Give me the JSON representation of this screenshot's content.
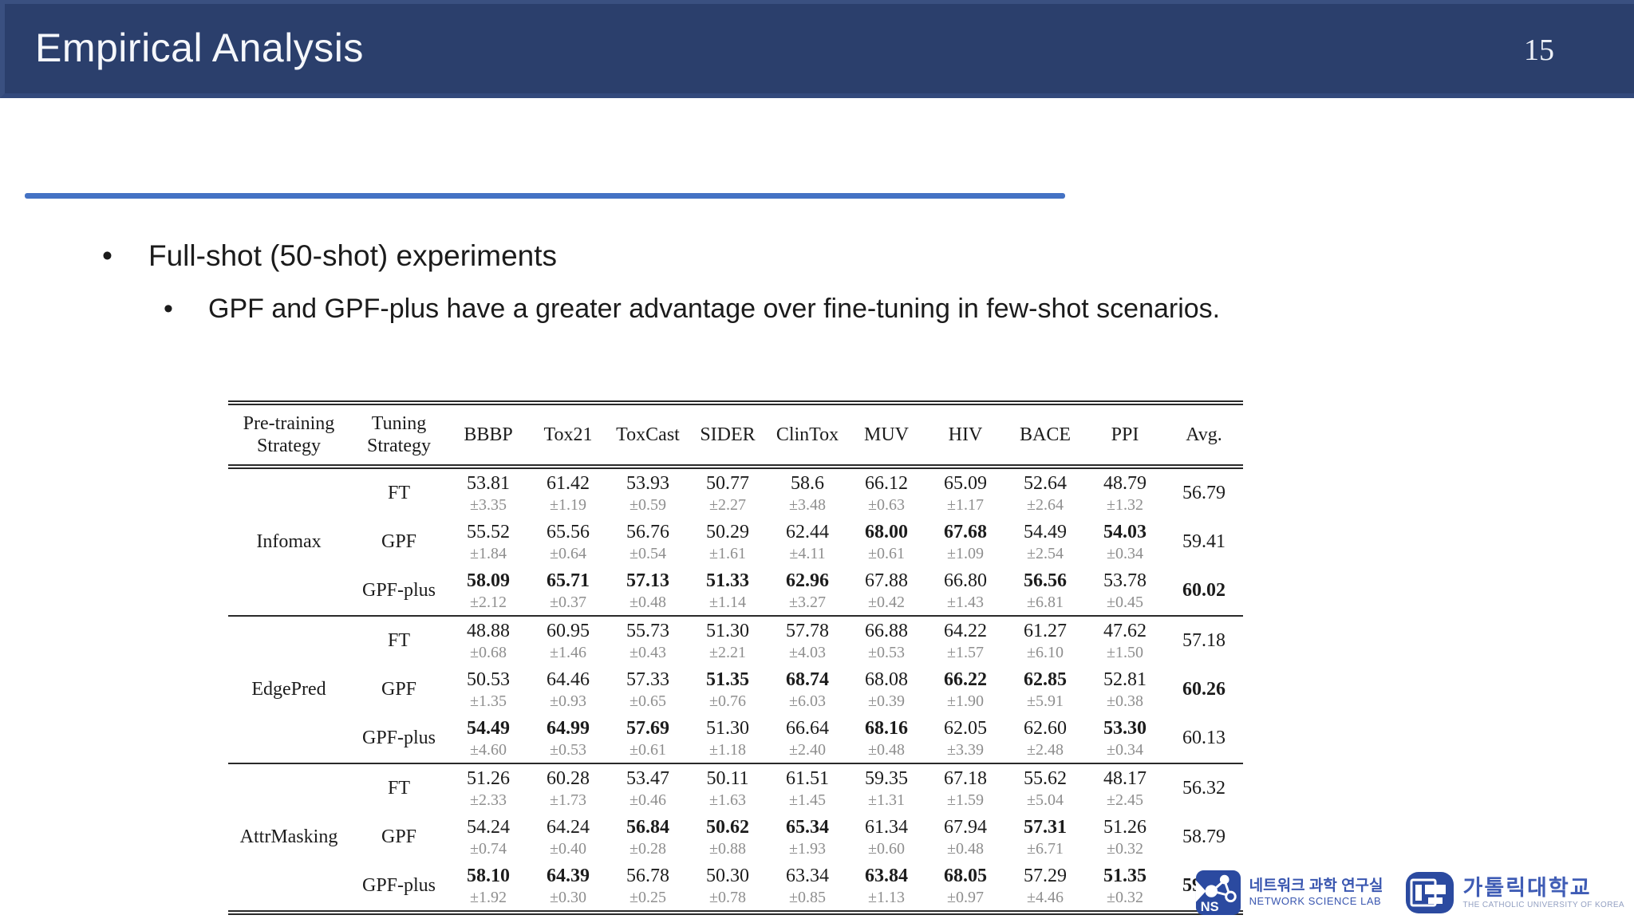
{
  "slide": {
    "title": "Empirical Analysis",
    "page_number": "15",
    "bullet_glyph": "•"
  },
  "colors": {
    "header_bg": "#2b3f6c",
    "divider_blue": "#4472c4",
    "logo_blue": "#2b4aa0",
    "std_gray": "#8e8e8e"
  },
  "bullets": {
    "level1": "Full-shot (50-shot) experiments",
    "level2": "GPF and GPF-plus have a greater advantage over fine-tuning in few-shot scenarios."
  },
  "chart_data": {
    "type": "table",
    "pretrain_header": [
      "Pre-training",
      "Strategy"
    ],
    "tuning_header": [
      "Tuning",
      "Strategy"
    ],
    "dataset_headers": [
      "BBBP",
      "Tox21",
      "ToxCast",
      "SIDER",
      "ClinTox",
      "MUV",
      "HIV",
      "BACE",
      "PPI"
    ],
    "avg_header": "Avg.",
    "groups": [
      {
        "name": "Infomax",
        "rows": [
          {
            "tuning": "FT",
            "values": [
              "53.81",
              "61.42",
              "53.93",
              "50.77",
              "58.6",
              "66.12",
              "65.09",
              "52.64",
              "48.79"
            ],
            "stds": [
              "±3.35",
              "±1.19",
              "±0.59",
              "±2.27",
              "±3.48",
              "±0.63",
              "±1.17",
              "±2.64",
              "±1.32"
            ],
            "bold": [
              0,
              0,
              0,
              0,
              0,
              0,
              0,
              0,
              0
            ],
            "avg": "56.79",
            "avg_bold": 0
          },
          {
            "tuning": "GPF",
            "values": [
              "55.52",
              "65.56",
              "56.76",
              "50.29",
              "62.44",
              "68.00",
              "67.68",
              "54.49",
              "54.03"
            ],
            "stds": [
              "±1.84",
              "±0.64",
              "±0.54",
              "±1.61",
              "±4.11",
              "±0.61",
              "±1.09",
              "±2.54",
              "±0.34"
            ],
            "bold": [
              0,
              0,
              0,
              0,
              0,
              1,
              1,
              0,
              1
            ],
            "avg": "59.41",
            "avg_bold": 0
          },
          {
            "tuning": "GPF-plus",
            "values": [
              "58.09",
              "65.71",
              "57.13",
              "51.33",
              "62.96",
              "67.88",
              "66.80",
              "56.56",
              "53.78"
            ],
            "stds": [
              "±2.12",
              "±0.37",
              "±0.48",
              "±1.14",
              "±3.27",
              "±0.42",
              "±1.43",
              "±6.81",
              "±0.45"
            ],
            "bold": [
              1,
              1,
              1,
              1,
              1,
              0,
              0,
              1,
              0
            ],
            "avg": "60.02",
            "avg_bold": 1
          }
        ]
      },
      {
        "name": "EdgePred",
        "rows": [
          {
            "tuning": "FT",
            "values": [
              "48.88",
              "60.95",
              "55.73",
              "51.30",
              "57.78",
              "66.88",
              "64.22",
              "61.27",
              "47.62"
            ],
            "stds": [
              "±0.68",
              "±1.46",
              "±0.43",
              "±2.21",
              "±4.03",
              "±0.53",
              "±1.57",
              "±6.10",
              "±1.50"
            ],
            "bold": [
              0,
              0,
              0,
              0,
              0,
              0,
              0,
              0,
              0
            ],
            "avg": "57.18",
            "avg_bold": 0
          },
          {
            "tuning": "GPF",
            "values": [
              "50.53",
              "64.46",
              "57.33",
              "51.35",
              "68.74",
              "68.08",
              "66.22",
              "62.85",
              "52.81"
            ],
            "stds": [
              "±1.35",
              "±0.93",
              "±0.65",
              "±0.76",
              "±6.03",
              "±0.39",
              "±1.90",
              "±5.91",
              "±0.38"
            ],
            "bold": [
              0,
              0,
              0,
              1,
              1,
              0,
              1,
              1,
              0
            ],
            "avg": "60.26",
            "avg_bold": 1
          },
          {
            "tuning": "GPF-plus",
            "values": [
              "54.49",
              "64.99",
              "57.69",
              "51.30",
              "66.64",
              "68.16",
              "62.05",
              "62.60",
              "53.30"
            ],
            "stds": [
              "±4.60",
              "±0.53",
              "±0.61",
              "±1.18",
              "±2.40",
              "±0.48",
              "±3.39",
              "±2.48",
              "±0.34"
            ],
            "bold": [
              1,
              1,
              1,
              0,
              0,
              1,
              0,
              0,
              1
            ],
            "avg": "60.13",
            "avg_bold": 0
          }
        ]
      },
      {
        "name": "AttrMasking",
        "rows": [
          {
            "tuning": "FT",
            "values": [
              "51.26",
              "60.28",
              "53.47",
              "50.11",
              "61.51",
              "59.35",
              "67.18",
              "55.62",
              "48.17"
            ],
            "stds": [
              "±2.33",
              "±1.73",
              "±0.46",
              "±1.63",
              "±1.45",
              "±1.31",
              "±1.59",
              "±5.04",
              "±2.45"
            ],
            "bold": [
              0,
              0,
              0,
              0,
              0,
              0,
              0,
              0,
              0
            ],
            "avg": "56.32",
            "avg_bold": 0
          },
          {
            "tuning": "GPF",
            "values": [
              "54.24",
              "64.24",
              "56.84",
              "50.62",
              "65.34",
              "61.34",
              "67.94",
              "57.31",
              "51.26"
            ],
            "stds": [
              "±0.74",
              "±0.40",
              "±0.28",
              "±0.88",
              "±1.93",
              "±0.60",
              "±0.48",
              "±6.71",
              "±0.32"
            ],
            "bold": [
              0,
              0,
              1,
              1,
              1,
              0,
              0,
              1,
              0
            ],
            "avg": "58.79",
            "avg_bold": 0
          },
          {
            "tuning": "GPF-plus",
            "values": [
              "58.10",
              "64.39",
              "56.78",
              "50.30",
              "63.34",
              "63.84",
              "68.05",
              "57.29",
              "51.35"
            ],
            "stds": [
              "±1.92",
              "±0.30",
              "±0.25",
              "±0.78",
              "±0.85",
              "±1.13",
              "±0.97",
              "±4.46",
              "±0.32"
            ],
            "bold": [
              1,
              1,
              0,
              0,
              0,
              1,
              1,
              0,
              1
            ],
            "avg": "59.27",
            "avg_bold": 1
          }
        ]
      }
    ]
  },
  "footer": {
    "ns_lab": {
      "abbr": "NS",
      "korean": "네트워크 과학 연구실",
      "english": "NETWORK SCIENCE LAB"
    },
    "university": {
      "korean": "가톨릭대학교",
      "english": "THE CATHOLIC UNIVERSITY OF KOREA"
    }
  }
}
